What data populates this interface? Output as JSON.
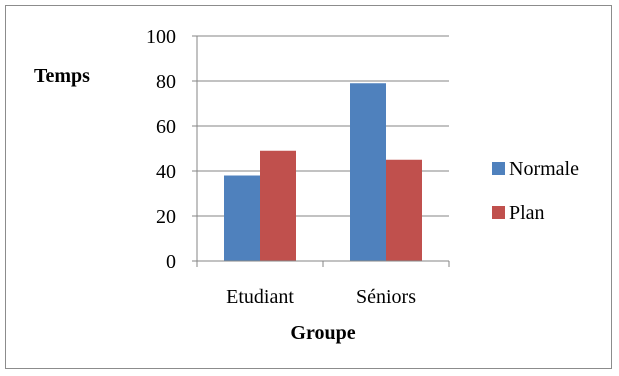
{
  "chart_data": {
    "type": "bar",
    "categories": [
      "Etudiant",
      "Séniors"
    ],
    "series": [
      {
        "name": "Normale",
        "values": [
          38,
          79
        ]
      },
      {
        "name": "Plan",
        "values": [
          49,
          45
        ]
      }
    ],
    "ylabel": "Temps",
    "xlabel": "Groupe",
    "ylim": [
      0,
      100
    ],
    "yticks": [
      "0",
      "20",
      "40",
      "60",
      "80",
      "100"
    ],
    "grid": true,
    "legend_position": "right",
    "colors": {
      "Normale": "#4f81bd",
      "Plan": "#c0504d",
      "grid": "#868686",
      "axis": "#868686"
    }
  }
}
